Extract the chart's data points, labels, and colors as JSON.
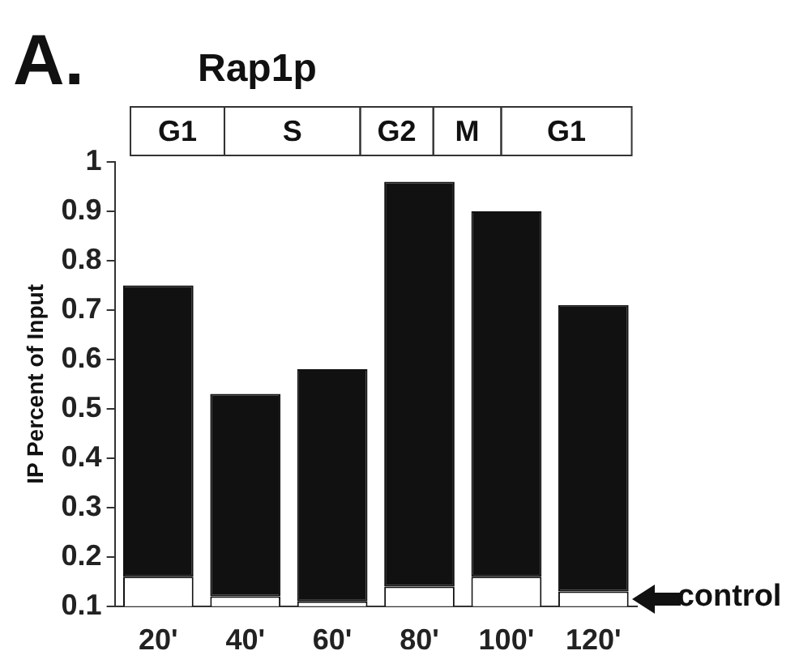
{
  "chart_data": {
    "type": "bar",
    "title": "Rap1p",
    "ylabel": "IP Percent of Input",
    "categories": [
      "20'",
      "40'",
      "60'",
      "80'",
      "100'",
      "120'"
    ],
    "stacked": true,
    "series": [
      {
        "name": "control",
        "color": "#ffffff",
        "values": [
          0.16,
          0.12,
          0.11,
          0.14,
          0.16,
          0.13
        ]
      },
      {
        "color": "#111111",
        "values": [
          0.59,
          0.41,
          0.47,
          0.82,
          0.74,
          0.58
        ]
      }
    ],
    "ylim": [
      0.1,
      1
    ],
    "yticks": [
      0.1,
      0.2,
      0.3,
      0.4,
      0.5,
      0.6,
      0.7,
      0.8,
      0.9,
      1
    ],
    "grid": false,
    "legend": false,
    "annotations": [
      "A.",
      "G1",
      "S",
      "G2",
      "M",
      "G1"
    ]
  }
}
